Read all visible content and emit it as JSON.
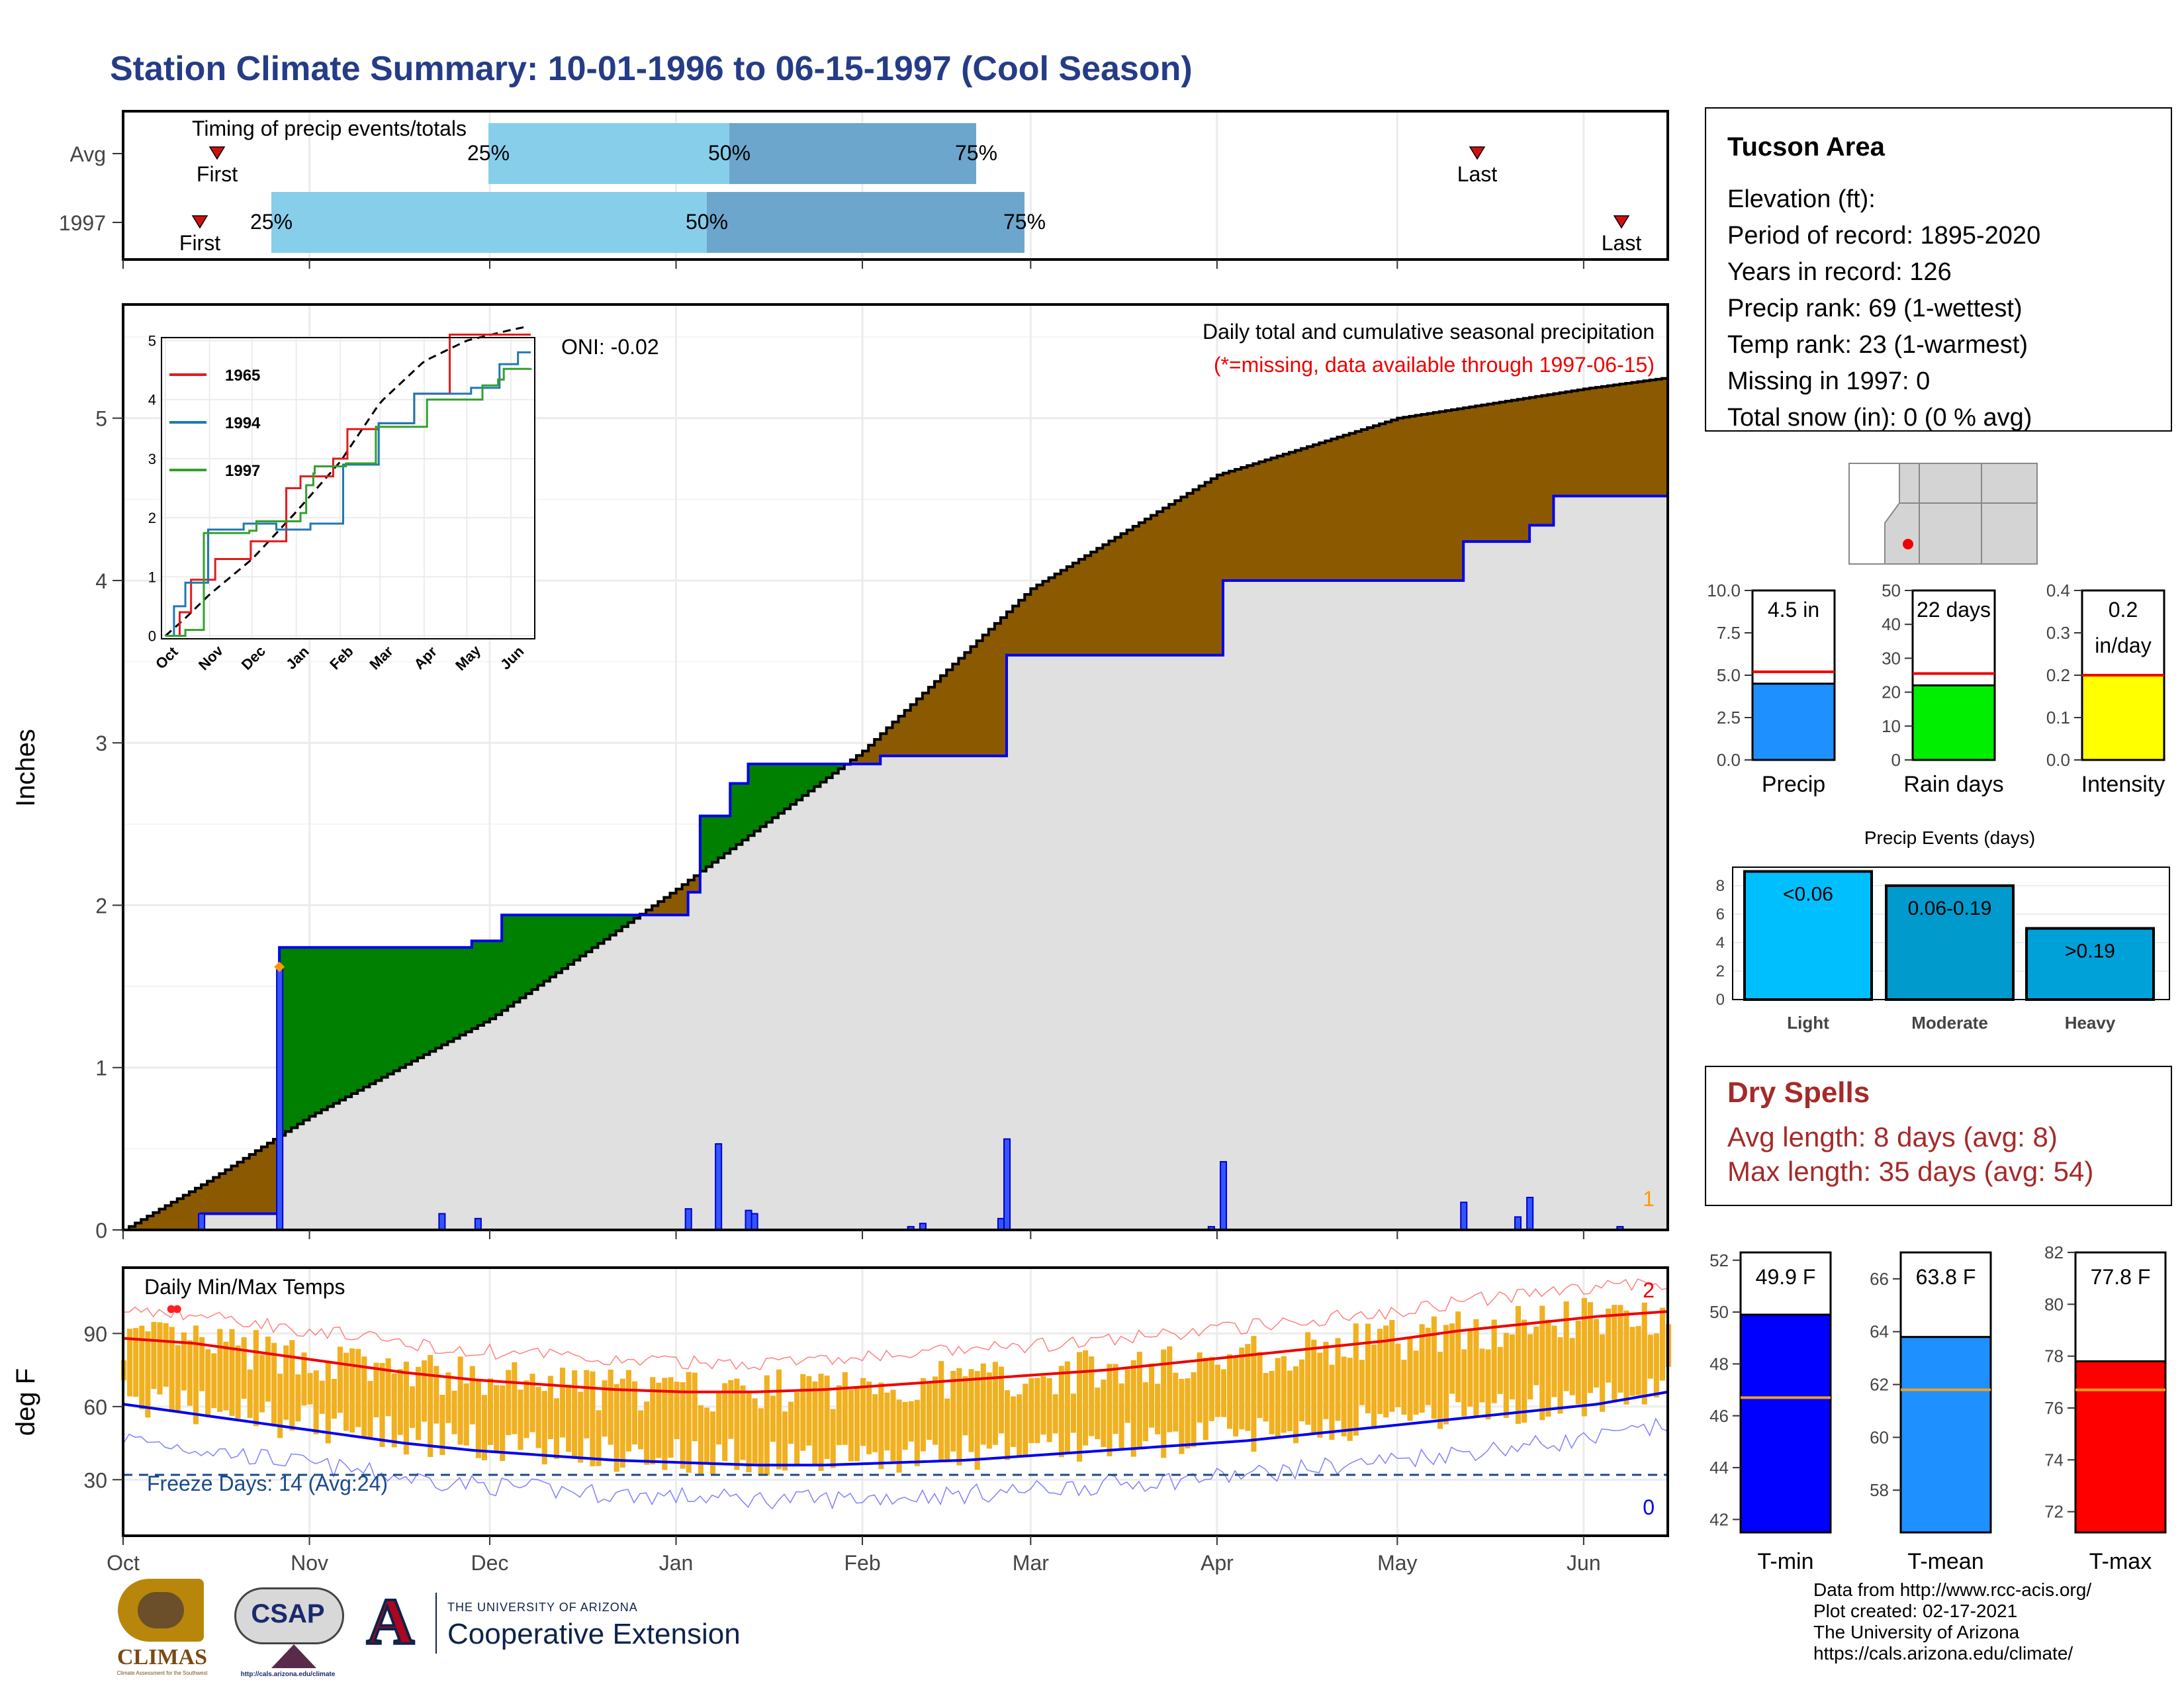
{
  "title": "Station Climate Summary: 10-01-1996 to 06-15-1997 (Cool Season)",
  "colors": {
    "title": "#253c86",
    "brown": "#8b5a00",
    "green": "#008000",
    "light_blue": "#87ceeb",
    "mid_blue": "#6ca6cd",
    "dry_spell": "#a52a2a",
    "cum_grey": "#e0e0e0",
    "orange": "#f0b020"
  },
  "timing": {
    "title": "Timing of precip events/totals",
    "rows": [
      {
        "label": "Avg",
        "first": "First",
        "last": "Last",
        "p25": "25%",
        "p50": "50%",
        "p75": "75%"
      },
      {
        "label": "1997",
        "first": "First",
        "last": "Last",
        "p25": "25%",
        "p50": "50%",
        "p75": "75%"
      }
    ]
  },
  "main": {
    "ylabel": "Inches",
    "yticks": [
      "0",
      "1",
      "2",
      "3",
      "4",
      "5"
    ],
    "months": [
      "Oct",
      "Nov",
      "Dec",
      "Jan",
      "Feb",
      "Mar",
      "Apr",
      "May",
      "Jun"
    ],
    "oni": "ONI: -0.02",
    "legend_title": "Daily total and cumulative seasonal precipitation",
    "missing_note": "(*=missing, data available through 1997-06-15)",
    "missing_count": "1"
  },
  "inset": {
    "yticks": [
      "0",
      "1",
      "2",
      "3",
      "4",
      "5"
    ],
    "months": [
      "Oct",
      "Nov",
      "Dec",
      "Jan",
      "Feb",
      "Mar",
      "Apr",
      "May",
      "Jun"
    ],
    "legend": [
      {
        "name": "1965",
        "color": "#e31a1c"
      },
      {
        "name": "1994",
        "color": "#1f78b4"
      },
      {
        "name": "1997",
        "color": "#33a02c"
      }
    ]
  },
  "temps": {
    "title": "Daily Min/Max Temps",
    "ylabel": "deg F",
    "yticks": [
      "30",
      "60",
      "90"
    ],
    "freeze": "Freeze Days: 14 (Avg:24)",
    "max_count": "2",
    "min_count": "0"
  },
  "info": {
    "area": "Tucson Area",
    "lines": [
      "Elevation (ft):",
      "Period of record: 1895-2020",
      "Years in record: 126",
      "Precip rank: 69 (1-wettest)",
      "Temp rank: 23 (1-warmest)",
      "Missing in 1997: 0",
      "Total snow (in): 0 (0 % avg)"
    ]
  },
  "gauges": [
    {
      "label": "Precip",
      "value_text": "4.5 in",
      "value": 4.5,
      "avg": 5.2,
      "max": 10,
      "ticks": [
        "0.0",
        "2.5",
        "5.0",
        "7.5",
        "10.0"
      ],
      "color": "#1e90ff"
    },
    {
      "label": "Rain days",
      "value_text": "22 days",
      "value": 22,
      "avg": 25.5,
      "max": 50,
      "ticks": [
        "0",
        "10",
        "20",
        "30",
        "40",
        "50"
      ],
      "color": "#00ee00"
    },
    {
      "label": "Intensity",
      "value_text": "0.2",
      "value_text2": "in/day",
      "value": 0.2,
      "avg": 0.2,
      "max": 0.4,
      "ticks": [
        "0.0",
        "0.1",
        "0.2",
        "0.3",
        "0.4"
      ],
      "color": "#ffff00"
    }
  ],
  "events": {
    "title": "Precip Events (days)",
    "yticks": [
      "0",
      "2",
      "4",
      "6",
      "8"
    ],
    "bars": [
      {
        "label": "Light",
        "value_label": "<0.06",
        "value": 9,
        "color": "#00bfff"
      },
      {
        "label": "Moderate",
        "value_label": "0.06-0.19",
        "value": 8,
        "color": "#009acd"
      },
      {
        "label": "Heavy",
        "value_label": ">0.19",
        "value": 5,
        "color": "#00a0d8"
      }
    ]
  },
  "dry": {
    "title": "Dry Spells",
    "avg_line": "Avg length: 8 days (avg: 8)",
    "max_line": "Max length: 35 days (avg: 54)"
  },
  "temp_gauges": [
    {
      "label": "T-min",
      "value_text": "49.9 F",
      "value": 49.9,
      "avg": 46.7,
      "min": 41.5,
      "max": 52.3,
      "ticks": [
        "42",
        "44",
        "46",
        "48",
        "50",
        "52"
      ],
      "color": "#0000ff"
    },
    {
      "label": "T-mean",
      "value_text": "63.8 F",
      "value": 63.8,
      "avg": 61.8,
      "min": 56.4,
      "max": 67.0,
      "ticks": [
        "58",
        "60",
        "62",
        "64",
        "66"
      ],
      "color": "#1e90ff"
    },
    {
      "label": "T-max",
      "value_text": "77.8 F",
      "value": 77.8,
      "avg": 76.7,
      "min": 71.2,
      "max": 82.0,
      "ticks": [
        "72",
        "74",
        "76",
        "78",
        "80",
        "82"
      ],
      "color": "#ff0000"
    }
  ],
  "footer": {
    "lines": [
      "Data from http://www.rcc-acis.org/",
      "Plot created: 02-17-2021",
      "The University of Arizona",
      "https://cals.arizona.edu/climate/"
    ]
  },
  "logos": {
    "climas": "CLIMAS",
    "climas_sub": "Climate Assessment for the Southwest",
    "csap": "CSAP",
    "csap_url": "http://cals.arizona.edu/climate",
    "ua_letter": "A",
    "ua_small": "THE UNIVERSITY OF ARIZONA",
    "ua_big": "Cooperative Extension"
  },
  "chart_data": {
    "type": "area",
    "title": "Daily total and cumulative seasonal precipitation",
    "ylabel": "Inches",
    "ylim": [
      0,
      5.7
    ],
    "x_start": "1996-10-01",
    "x_end": "1997-06-15",
    "categories": [
      "Oct",
      "Nov",
      "Dec",
      "Jan",
      "Feb",
      "Mar",
      "Apr",
      "May",
      "Jun"
    ],
    "series": [
      {
        "name": "1997",
        "x": [
          "1996-10-01",
          "1996-10-14",
          "1996-10-27",
          "1996-11-28",
          "1996-12-03",
          "1997-01-03",
          "1997-01-05",
          "1997-01-10",
          "1997-01-13",
          "1997-02-04",
          "1997-02-25",
          "1997-04-02",
          "1997-05-12",
          "1997-05-23",
          "1997-05-27",
          "1997-06-15"
        ],
        "values": [
          0,
          0.1,
          1.74,
          1.78,
          1.94,
          2.08,
          2.55,
          2.75,
          2.87,
          2.92,
          3.54,
          4.0,
          4.24,
          4.34,
          4.52,
          4.53
        ]
      },
      {
        "name": "Avg",
        "x": [
          "1996-10-01",
          "1996-10-15",
          "1996-11-01",
          "1996-12-01",
          "1997-01-01",
          "1997-02-01",
          "1997-03-01",
          "1997-04-01",
          "1997-05-01",
          "1997-06-01",
          "1997-06-15"
        ],
        "values": [
          0,
          0.3,
          0.7,
          1.3,
          2.1,
          2.95,
          3.95,
          4.65,
          5.0,
          5.18,
          5.25
        ]
      },
      {
        "name": "daily",
        "x": [
          "1996-10-14",
          "1996-10-27",
          "1996-11-23",
          "1996-11-29",
          "1997-01-03",
          "1997-01-08",
          "1997-01-13",
          "1997-01-14",
          "1997-02-09",
          "1997-02-11",
          "1997-02-24",
          "1997-02-25",
          "1997-03-31",
          "1997-04-02",
          "1997-05-12",
          "1997-05-21",
          "1997-05-23",
          "1997-06-07"
        ],
        "values": [
          0.1,
          1.62,
          0.1,
          0.07,
          0.13,
          0.53,
          0.12,
          0.1,
          0.02,
          0.04,
          0.07,
          0.56,
          0.02,
          0.42,
          0.17,
          0.08,
          0.2,
          0.02
        ]
      }
    ],
    "temps": {
      "ylim": [
        7,
        117
      ],
      "avg_max": [
        88,
        86,
        82,
        78,
        74,
        71,
        69,
        67,
        66,
        66,
        67,
        69,
        71,
        73,
        75,
        78,
        81,
        84,
        87,
        91,
        94,
        97,
        99
      ],
      "avg_min": [
        61,
        57,
        53,
        49,
        45,
        42,
        40,
        38,
        37,
        36,
        36,
        37,
        38,
        40,
        42,
        44,
        46,
        49,
        52,
        55,
        58,
        61,
        66
      ],
      "freeze": 32
    }
  }
}
